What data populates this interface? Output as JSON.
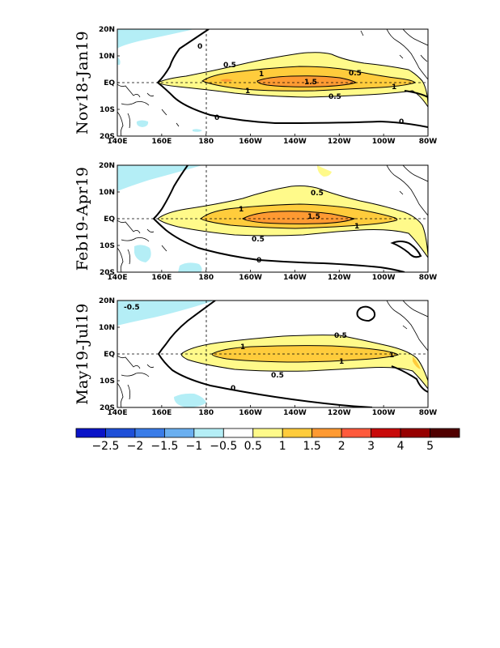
{
  "maps": [
    {
      "period": "Nov18-Jan19",
      "contour_labels": [
        "0",
        "0.5",
        "1",
        "1.5",
        "1",
        "0.5",
        "1",
        "0.5",
        "0",
        "0"
      ]
    },
    {
      "period": "Feb19-Apr19",
      "contour_labels": [
        "0.5",
        "1",
        "1.5",
        "1",
        "0.5",
        "0"
      ]
    },
    {
      "period": "May19-Jul19",
      "contour_labels": [
        "-0.5",
        "0.5",
        "1",
        "1",
        "1",
        "0.5",
        "0"
      ]
    }
  ],
  "axes": {
    "x_ticks": [
      "140E",
      "160E",
      "180",
      "160W",
      "140W",
      "120W",
      "100W",
      "80W"
    ],
    "y_ticks": [
      "20N",
      "10N",
      "EQ",
      "10S",
      "20S"
    ]
  },
  "colorbar": {
    "labels": [
      "-2.5",
      "-2",
      "-1.5",
      "-1",
      "-0.5",
      "0.5",
      "1",
      "1.5",
      "2",
      "3",
      "4",
      "5"
    ],
    "colors": [
      "#0a14c8",
      "#1e4fd8",
      "#3a7ce8",
      "#6aaff0",
      "#b4eef6",
      "#ffffff",
      "#fffa8a",
      "#ffcc3c",
      "#ff9a32",
      "#ff5a3c",
      "#c80a0a",
      "#960000",
      "#500000"
    ]
  },
  "colors": {
    "neg": "#b4eef6",
    "c05": "#fffa8a",
    "c10": "#ffcc3c",
    "c15": "#ff9a32"
  }
}
